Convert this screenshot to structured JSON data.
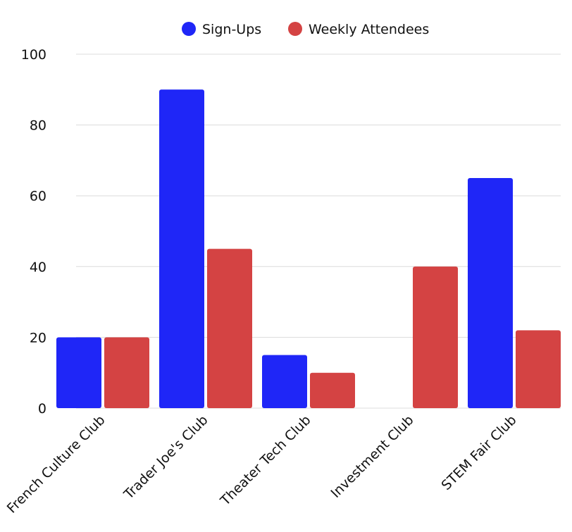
{
  "chart_data": {
    "type": "bar",
    "title": "",
    "xlabel": "",
    "ylabel": "",
    "categories": [
      "French Culture Club",
      "Trader Joe's Club",
      "Theater Tech Club",
      "Investment Club",
      "STEM Fair Club"
    ],
    "series": [
      {
        "name": "Sign-Ups",
        "color": "#1f26f7",
        "values": [
          20,
          90,
          15,
          0,
          65
        ]
      },
      {
        "name": "Weekly Attendees",
        "color": "#d44343",
        "values": [
          20,
          45,
          10,
          40,
          22
        ]
      }
    ],
    "ylim": [
      0,
      100
    ],
    "yticks": [
      0,
      20,
      40,
      60,
      80,
      100
    ],
    "grid": true,
    "legend": "top-center"
  }
}
